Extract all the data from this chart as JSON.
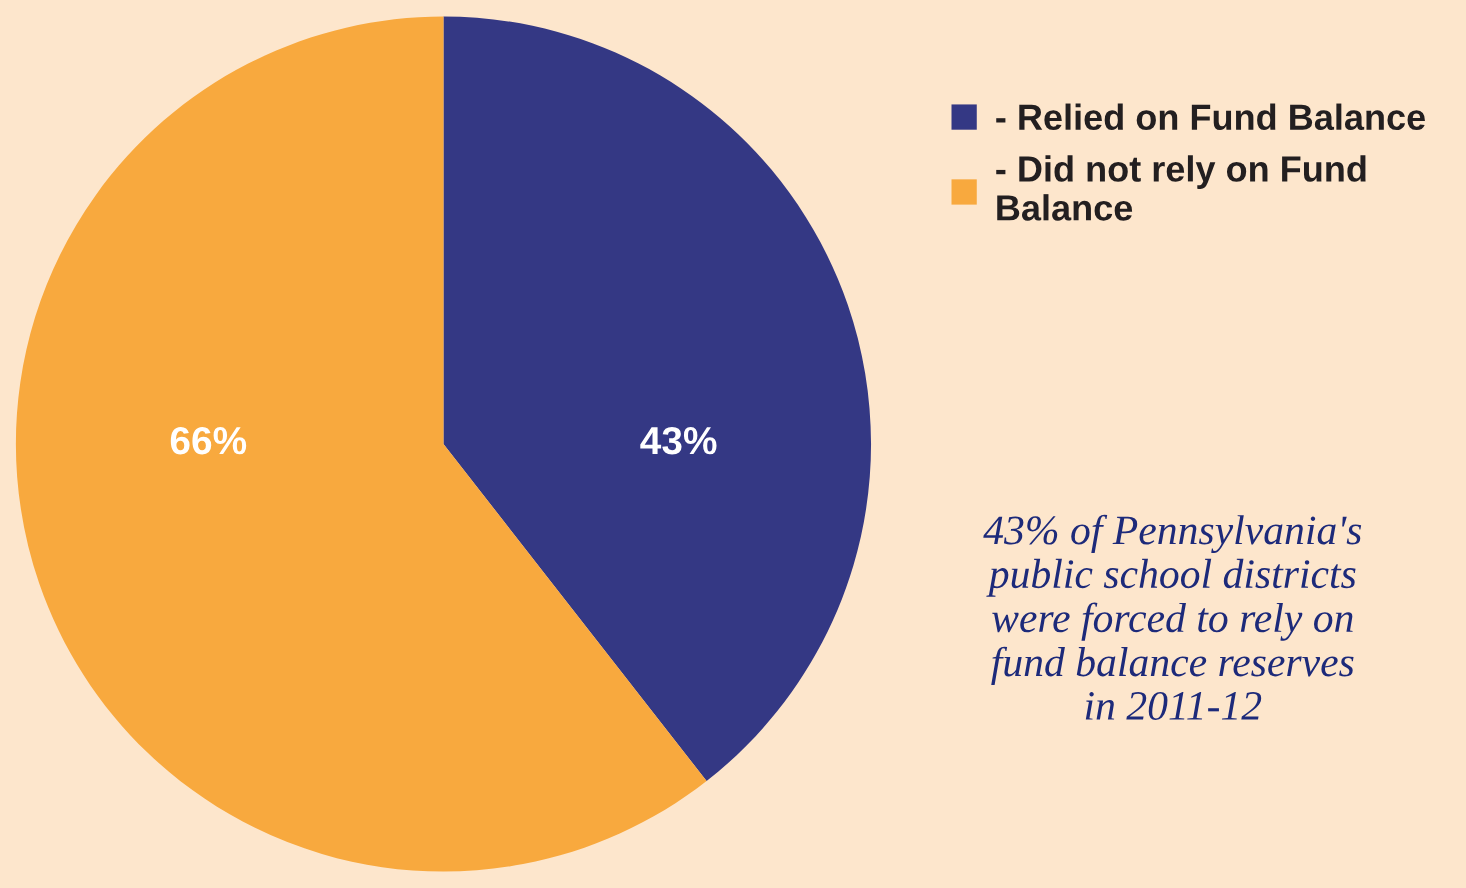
{
  "chart_data": {
    "type": "pie",
    "categories": [
      "- Relied on Fund Balance",
      "- Did not rely on Fund Balance"
    ],
    "values": [
      43,
      66
    ],
    "colors": [
      "#343884",
      "#f8a93e"
    ],
    "value_labels": [
      "43%",
      "66%"
    ],
    "legend": "top right",
    "annotations": [
      "43% of Pennsylvania's\npublic school districts\nwere forced to rely on\nfund balance reserves\nin 2011-12"
    ]
  }
}
